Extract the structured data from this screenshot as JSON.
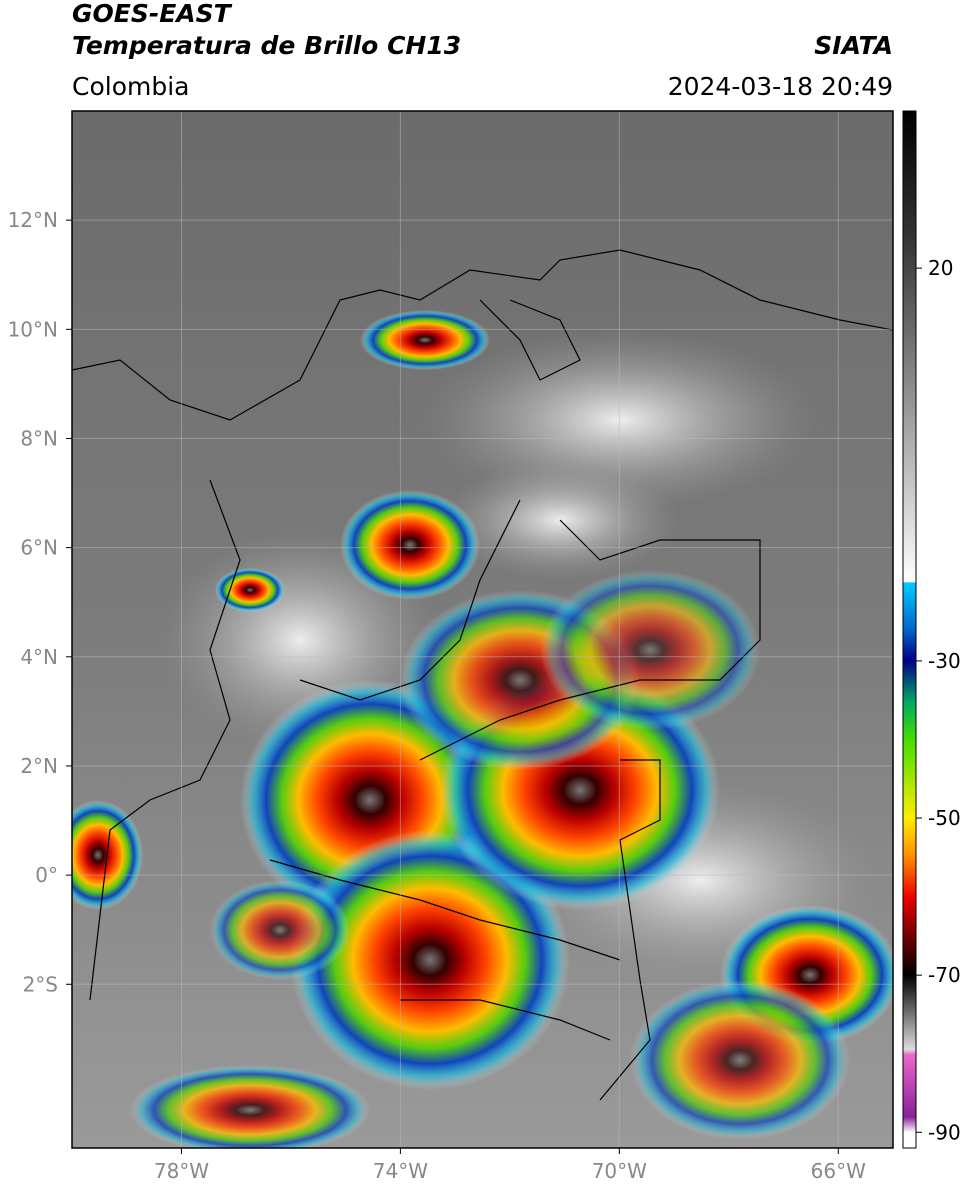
{
  "header": {
    "title": "GOES-EAST",
    "subtitle": "Temperatura de Brillo CH13",
    "source": "SIATA",
    "region": "Colombia",
    "timestamp": "2024-03-18 20:49"
  },
  "map": {
    "xlim": [
      -80,
      -65
    ],
    "ylim": [
      -5,
      14
    ],
    "xticks": [
      {
        "value": -78,
        "label": "78°W"
      },
      {
        "value": -74,
        "label": "74°W"
      },
      {
        "value": -70,
        "label": "70°W"
      },
      {
        "value": -66,
        "label": "66°W"
      }
    ],
    "yticks": [
      {
        "value": 12,
        "label": "12°N"
      },
      {
        "value": 10,
        "label": "10°N"
      },
      {
        "value": 8,
        "label": "8°N"
      },
      {
        "value": 6,
        "label": "6°N"
      },
      {
        "value": 4,
        "label": "4°N"
      },
      {
        "value": 2,
        "label": "2°N"
      },
      {
        "value": 0,
        "label": "0°"
      },
      {
        "value": -2,
        "label": "2°S"
      }
    ],
    "grid": true
  },
  "colorbar": {
    "lim": [
      -92,
      40
    ],
    "ticks": [
      20,
      -30,
      -50,
      -70,
      -90
    ]
  }
}
